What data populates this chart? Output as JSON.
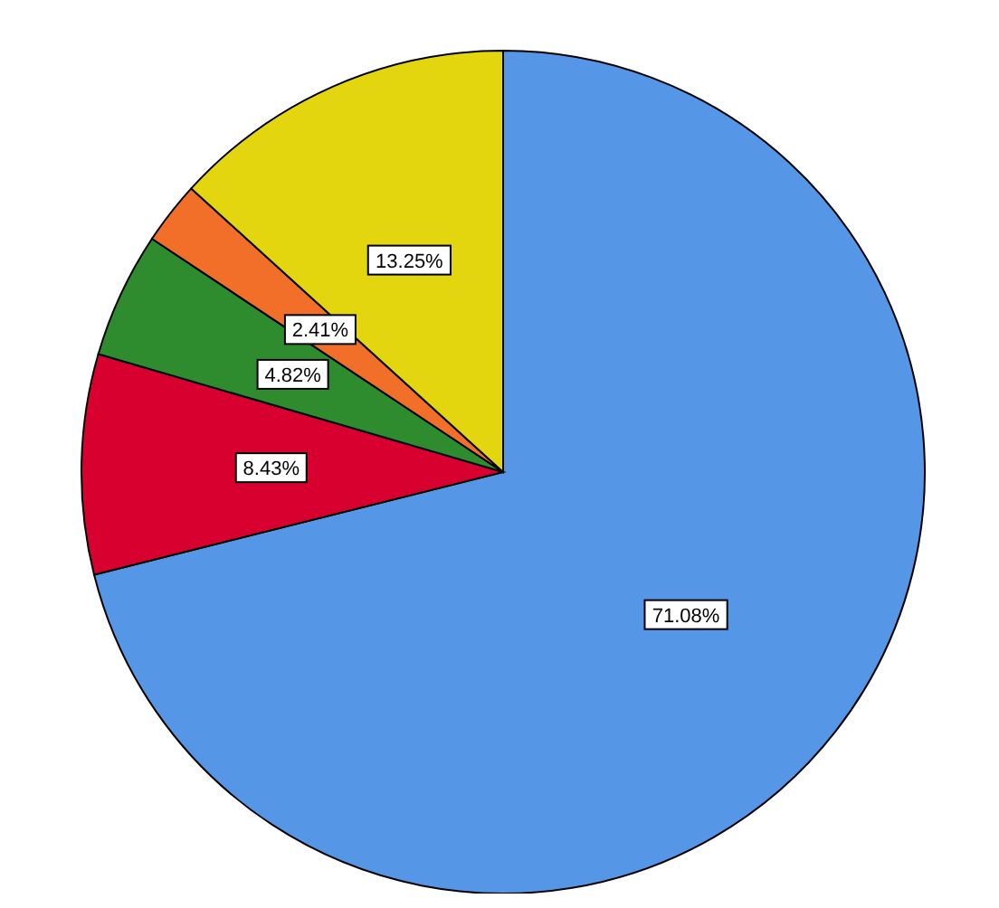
{
  "chart_data": {
    "type": "pie",
    "categories": [
      null,
      null,
      null,
      null,
      null
    ],
    "values": [
      71.08,
      8.43,
      4.82,
      2.41,
      13.25
    ],
    "colors": [
      "#5596e6",
      "#d7002f",
      "#2e8b2e",
      "#f26f2a",
      "#e3d60f"
    ],
    "value_labels": [
      "71.08%",
      "8.43%",
      "4.82%",
      "2.41%",
      "13.25%"
    ]
  }
}
